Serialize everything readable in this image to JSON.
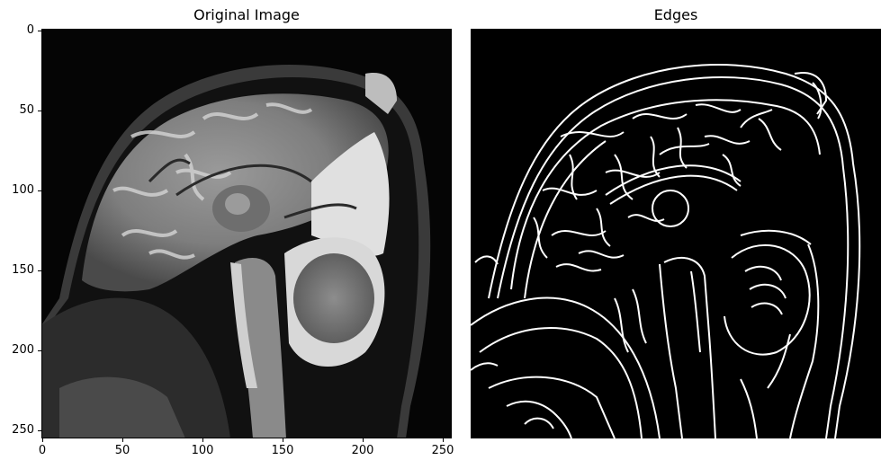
{
  "titles": {
    "left": "Original Image",
    "right": "Edges"
  },
  "left_axes": {
    "x_ticks": [
      "0",
      "50",
      "100",
      "150",
      "200",
      "250"
    ],
    "y_ticks": [
      "0",
      "50",
      "100",
      "150",
      "200",
      "250"
    ],
    "xlim": [
      0,
      256
    ],
    "ylim": [
      256,
      0
    ]
  },
  "right_axes": {
    "axis": "off"
  },
  "colors": {
    "background": "#ffffff",
    "image_background": "#000000",
    "edge_color": "#ffffff"
  }
}
